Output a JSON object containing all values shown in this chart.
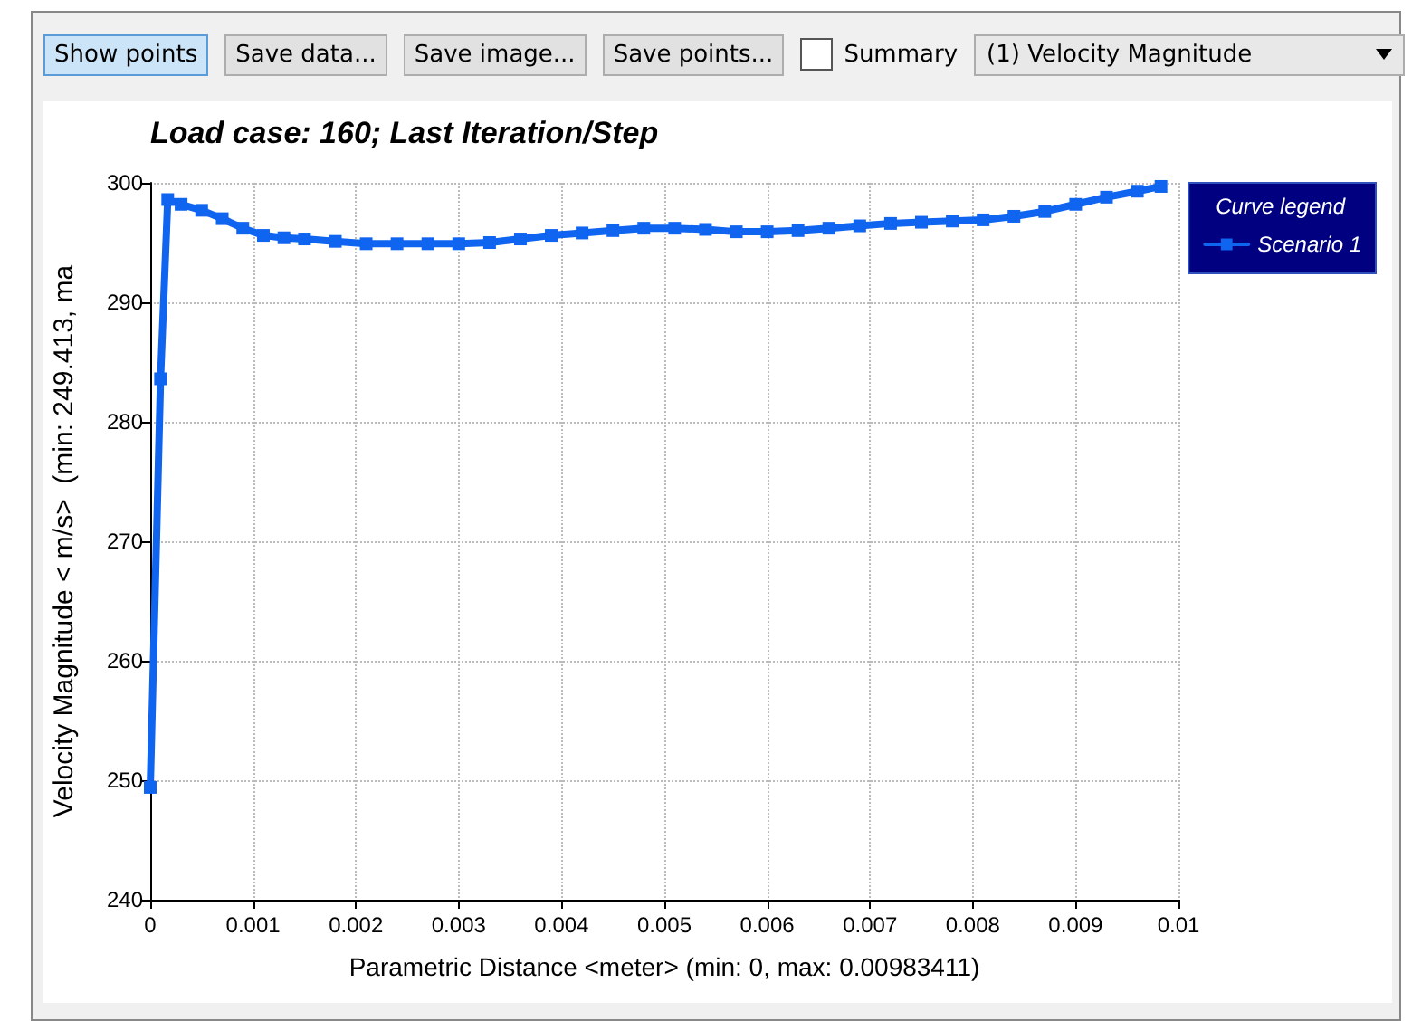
{
  "chart_data": {
    "type": "line",
    "title": "Load case: 160; Last Iteration/Step",
    "xlabel": "Parametric Distance <meter> (min: 0, max: 0.00983411)",
    "ylabel": "Velocity Magnitude < m/s>  (min: 249.413, ma",
    "legend_title": "Curve legend",
    "annotations": [
      "Show points",
      "Save data...",
      "Save image...",
      "Save points...",
      "Summary",
      "(1) Velocity Magnitude"
    ],
    "x": [
      0,
      0.0001,
      0.00017,
      0.0003,
      0.0005,
      0.0007,
      0.0009,
      0.0011,
      0.0013,
      0.0015,
      0.0018,
      0.0021,
      0.0024,
      0.0027,
      0.003,
      0.0033,
      0.0036,
      0.0039,
      0.0042,
      0.0045,
      0.0048,
      0.0051,
      0.0054,
      0.0057,
      0.006,
      0.0063,
      0.0066,
      0.0069,
      0.0072,
      0.0075,
      0.0078,
      0.0081,
      0.0084,
      0.0087,
      0.009,
      0.0093,
      0.0096,
      0.00983
    ],
    "series": [
      {
        "name": "Scenario 1",
        "color": "#0f64f0",
        "values": [
          249.4,
          283.6,
          298.6,
          298.2,
          297.7,
          297.0,
          296.2,
          295.6,
          295.4,
          295.3,
          295.1,
          294.9,
          294.9,
          294.9,
          294.9,
          295.0,
          295.3,
          295.6,
          295.8,
          296.0,
          296.2,
          296.2,
          296.1,
          295.9,
          295.9,
          296.0,
          296.2,
          296.4,
          296.6,
          296.7,
          296.8,
          296.9,
          297.2,
          297.6,
          298.2,
          298.8,
          299.3,
          299.7
        ]
      }
    ],
    "xlim": [
      0,
      0.01
    ],
    "xticks": [
      0,
      0.001,
      0.002,
      0.003,
      0.004,
      0.005,
      0.006,
      0.007,
      0.008,
      0.009,
      0.01
    ],
    "ylim": [
      240,
      300
    ],
    "yticks": [
      240,
      250,
      260,
      270,
      280,
      290,
      300
    ],
    "grid": true,
    "legend": "top right",
    "marker": "square",
    "line_style": "solid"
  }
}
